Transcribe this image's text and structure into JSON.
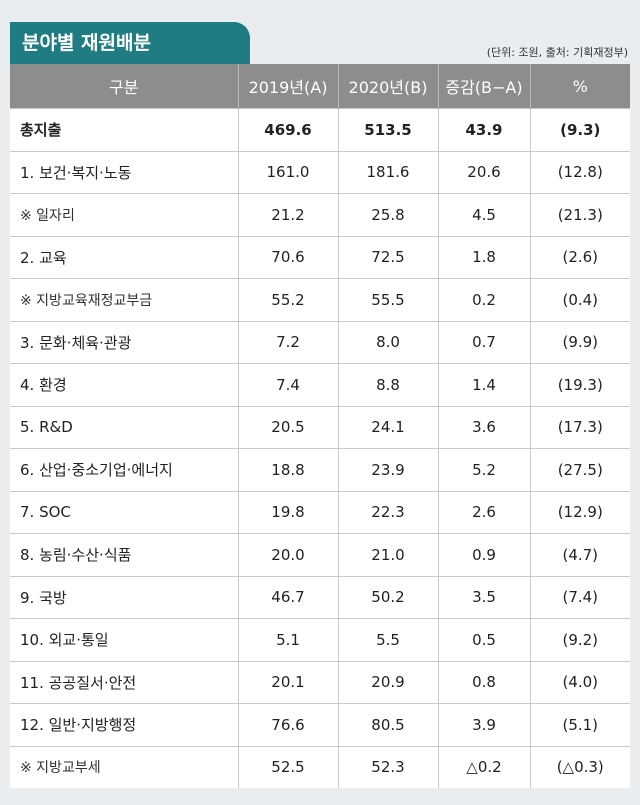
{
  "header": {
    "title": "분야별 재원배분",
    "note": "(단위: 조원, 출처: 기획재정부)"
  },
  "table": {
    "columns": [
      "구분",
      "2019년(A)",
      "2020년(B)",
      "증감(B−A)",
      "%"
    ],
    "rows": [
      [
        "총지출",
        "469.6",
        "513.5",
        "43.9",
        "(9.3)"
      ],
      [
        "1. 보건·복지·노동",
        "161.0",
        "181.6",
        "20.6",
        "(12.8)"
      ],
      [
        "※ 일자리",
        "21.2",
        "25.8",
        "4.5",
        "(21.3)"
      ],
      [
        "2. 교육",
        "70.6",
        "72.5",
        "1.8",
        "(2.6)"
      ],
      [
        "※ 지방교육재정교부금",
        "55.2",
        "55.5",
        "0.2",
        "(0.4)"
      ],
      [
        "3. 문화·체육·관광",
        "7.2",
        "8.0",
        "0.7",
        "(9.9)"
      ],
      [
        "4. 환경",
        "7.4",
        "8.8",
        "1.4",
        "(19.3)"
      ],
      [
        "5. R&D",
        "20.5",
        "24.1",
        "3.6",
        "(17.3)"
      ],
      [
        "6. 산업·중소기업·에너지",
        "18.8",
        "23.9",
        "5.2",
        "(27.5)"
      ],
      [
        "7. SOC",
        "19.8",
        "22.3",
        "2.6",
        "(12.9)"
      ],
      [
        "8. 농림·수산·식품",
        "20.0",
        "21.0",
        "0.9",
        "(4.7)"
      ],
      [
        "9. 국방",
        "46.7",
        "50.2",
        "3.5",
        "(7.4)"
      ],
      [
        "10. 외교·통일",
        "5.1",
        "5.5",
        "0.5",
        "(9.2)"
      ],
      [
        "11. 공공질서·안전",
        "20.1",
        "20.9",
        "0.8",
        "(4.0)"
      ],
      [
        "12. 일반·지방행정",
        "76.6",
        "80.5",
        "3.9",
        "(5.1)"
      ],
      [
        "※ 지방교부세",
        "52.5",
        "52.3",
        "△0.2",
        "(△0.3)"
      ]
    ]
  }
}
